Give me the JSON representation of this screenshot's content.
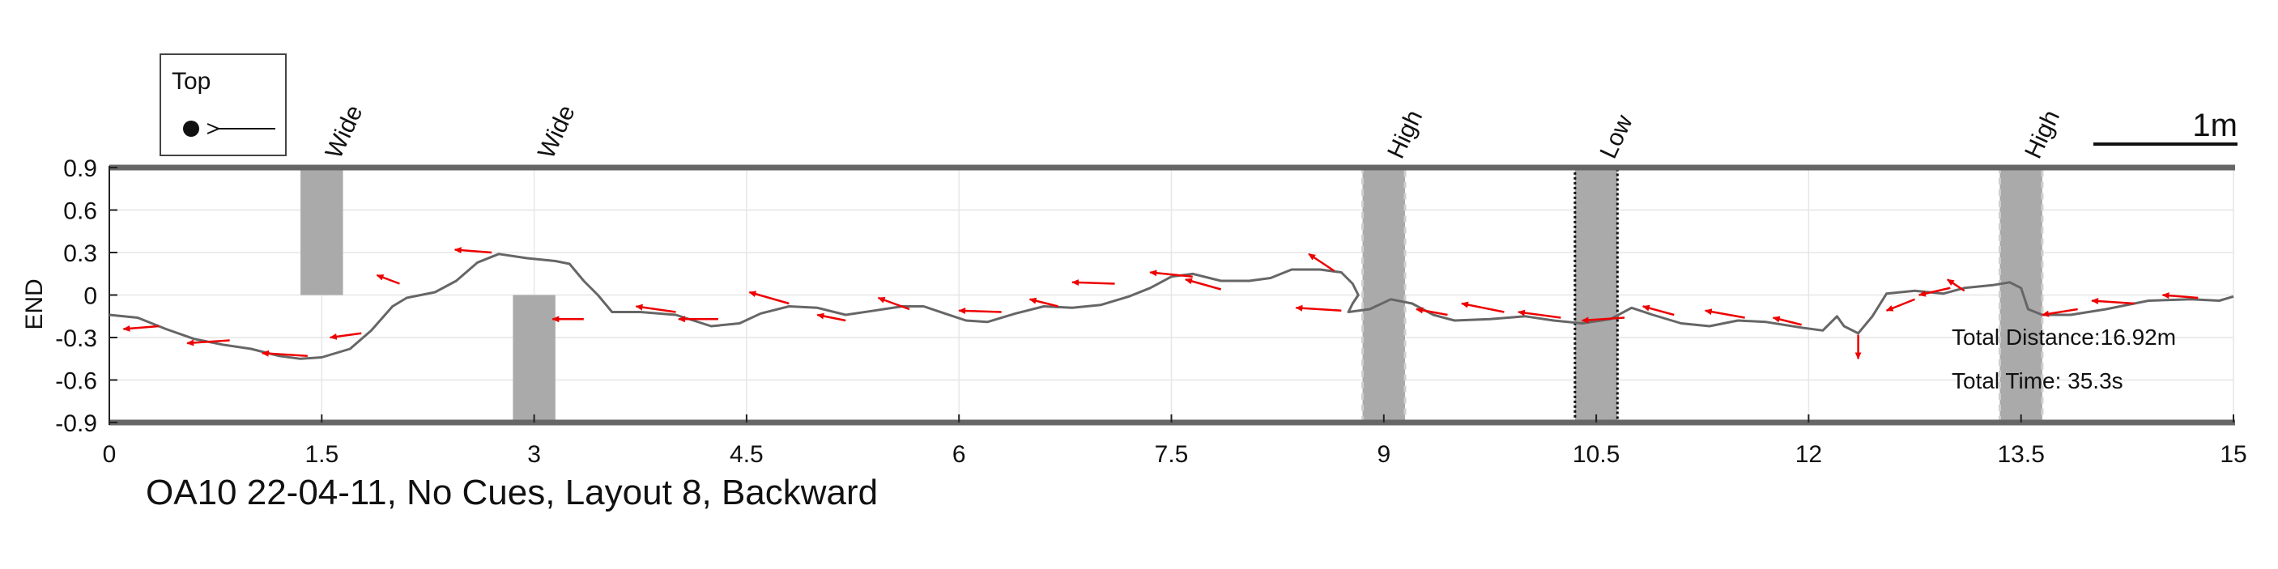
{
  "chart_data": {
    "type": "line",
    "title": "OA10 22-04-11, No Cues, Layout 8, Backward",
    "xlabel": "",
    "ylabel": "END",
    "xlim": [
      0,
      15
    ],
    "ylim": [
      -0.9,
      0.9
    ],
    "xticks": [
      "0",
      "1.5",
      "3",
      "4.5",
      "6",
      "7.5",
      "9",
      "10.5",
      "12",
      "13.5",
      "15"
    ],
    "yticks": [
      "0.9",
      "0.6",
      "0.3",
      "0",
      "-0.3",
      "-0.6",
      "-0.9"
    ],
    "grid": true,
    "legend": {
      "title": "Top",
      "placement": "top-left",
      "marker": "filled circle with arrow pointing left"
    },
    "scale_bar_label": "1m",
    "obstacles": [
      {
        "label": "Wide",
        "x": [
          1.35,
          1.65
        ],
        "y": [
          0,
          0.9
        ],
        "style": "solid"
      },
      {
        "label": "Wide",
        "x": [
          2.85,
          3.15
        ],
        "y": [
          -0.9,
          0
        ],
        "style": "solid"
      },
      {
        "label": "High",
        "x": [
          8.85,
          9.15
        ],
        "y": [
          -0.9,
          0.9
        ],
        "style": "dashed"
      },
      {
        "label": "Low",
        "x": [
          10.35,
          10.65
        ],
        "y": [
          -0.9,
          0.9
        ],
        "style": "dotted"
      },
      {
        "label": "High",
        "x": [
          13.35,
          13.65
        ],
        "y": [
          -0.9,
          0.9
        ],
        "style": "dashed"
      }
    ],
    "series": [
      {
        "color": "#666666",
        "points": [
          [
            0,
            -0.14
          ],
          [
            0.2,
            -0.16
          ],
          [
            0.4,
            -0.24
          ],
          [
            0.6,
            -0.31
          ],
          [
            0.8,
            -0.35
          ],
          [
            1.0,
            -0.38
          ],
          [
            1.2,
            -0.43
          ],
          [
            1.35,
            -0.45
          ],
          [
            1.5,
            -0.44
          ],
          [
            1.7,
            -0.38
          ],
          [
            1.85,
            -0.25
          ],
          [
            2.0,
            -0.08
          ],
          [
            2.1,
            -0.02
          ],
          [
            2.3,
            0.02
          ],
          [
            2.45,
            0.1
          ],
          [
            2.6,
            0.23
          ],
          [
            2.75,
            0.29
          ],
          [
            2.95,
            0.26
          ],
          [
            3.15,
            0.24
          ],
          [
            3.25,
            0.22
          ],
          [
            3.35,
            0.1
          ],
          [
            3.45,
            0.0
          ],
          [
            3.55,
            -0.12
          ],
          [
            3.75,
            -0.12
          ],
          [
            4.0,
            -0.14
          ],
          [
            4.25,
            -0.22
          ],
          [
            4.45,
            -0.2
          ],
          [
            4.6,
            -0.13
          ],
          [
            4.8,
            -0.08
          ],
          [
            5.0,
            -0.09
          ],
          [
            5.2,
            -0.14
          ],
          [
            5.4,
            -0.11
          ],
          [
            5.6,
            -0.08
          ],
          [
            5.75,
            -0.08
          ],
          [
            5.9,
            -0.13
          ],
          [
            6.05,
            -0.18
          ],
          [
            6.2,
            -0.19
          ],
          [
            6.4,
            -0.13
          ],
          [
            6.6,
            -0.08
          ],
          [
            6.8,
            -0.09
          ],
          [
            7.0,
            -0.07
          ],
          [
            7.2,
            -0.01
          ],
          [
            7.35,
            0.05
          ],
          [
            7.5,
            0.13
          ],
          [
            7.65,
            0.15
          ],
          [
            7.85,
            0.1
          ],
          [
            8.05,
            0.1
          ],
          [
            8.2,
            0.12
          ],
          [
            8.35,
            0.18
          ],
          [
            8.55,
            0.18
          ],
          [
            8.7,
            0.16
          ],
          [
            8.78,
            0.08
          ],
          [
            8.82,
            0.0
          ],
          [
            8.78,
            -0.06
          ],
          [
            8.75,
            -0.12
          ],
          [
            8.9,
            -0.1
          ],
          [
            9.05,
            -0.03
          ],
          [
            9.2,
            -0.06
          ],
          [
            9.35,
            -0.14
          ],
          [
            9.5,
            -0.18
          ],
          [
            9.75,
            -0.17
          ],
          [
            10.0,
            -0.15
          ],
          [
            10.2,
            -0.18
          ],
          [
            10.4,
            -0.2
          ],
          [
            10.6,
            -0.17
          ],
          [
            10.75,
            -0.09
          ],
          [
            10.9,
            -0.14
          ],
          [
            11.1,
            -0.2
          ],
          [
            11.3,
            -0.22
          ],
          [
            11.5,
            -0.18
          ],
          [
            11.7,
            -0.19
          ],
          [
            11.95,
            -0.23
          ],
          [
            12.1,
            -0.25
          ],
          [
            12.2,
            -0.15
          ],
          [
            12.25,
            -0.22
          ],
          [
            12.35,
            -0.27
          ],
          [
            12.45,
            -0.15
          ],
          [
            12.55,
            0.01
          ],
          [
            12.75,
            0.03
          ],
          [
            12.95,
            0.01
          ],
          [
            13.1,
            0.05
          ],
          [
            13.3,
            0.07
          ],
          [
            13.42,
            0.09
          ],
          [
            13.5,
            0.05
          ],
          [
            13.55,
            -0.1
          ],
          [
            13.65,
            -0.14
          ],
          [
            13.85,
            -0.14
          ],
          [
            14.1,
            -0.1
          ],
          [
            14.4,
            -0.04
          ],
          [
            14.7,
            -0.03
          ],
          [
            14.9,
            -0.04
          ],
          [
            15.0,
            -0.01
          ]
        ]
      }
    ],
    "arrows": {
      "color": "#ee0000",
      "vectors": [
        [
          0.35,
          -0.22,
          -0.25,
          -0.02
        ],
        [
          0.85,
          -0.32,
          -0.3,
          -0.02
        ],
        [
          1.4,
          -0.43,
          -0.32,
          0.02
        ],
        [
          1.78,
          -0.27,
          -0.22,
          -0.03
        ],
        [
          2.05,
          0.08,
          -0.16,
          0.06
        ],
        [
          2.7,
          0.3,
          -0.26,
          0.02
        ],
        [
          3.35,
          -0.17,
          -0.22,
          0.0
        ],
        [
          4.0,
          -0.12,
          -0.28,
          0.04
        ],
        [
          4.3,
          -0.17,
          -0.28,
          0.0
        ],
        [
          4.8,
          -0.06,
          -0.28,
          0.08
        ],
        [
          5.2,
          -0.18,
          -0.2,
          0.04
        ],
        [
          5.65,
          -0.1,
          -0.22,
          0.08
        ],
        [
          6.3,
          -0.12,
          -0.3,
          0.01
        ],
        [
          6.7,
          -0.08,
          -0.2,
          0.05
        ],
        [
          7.1,
          0.08,
          -0.3,
          0.01
        ],
        [
          7.65,
          0.13,
          -0.3,
          0.03
        ],
        [
          7.85,
          0.04,
          -0.25,
          0.07
        ],
        [
          8.65,
          0.17,
          -0.18,
          0.12
        ],
        [
          8.7,
          -0.11,
          -0.32,
          0.02
        ],
        [
          9.45,
          -0.14,
          -0.22,
          0.04
        ],
        [
          9.85,
          -0.12,
          -0.3,
          0.06
        ],
        [
          10.25,
          -0.16,
          -0.3,
          0.04
        ],
        [
          10.7,
          -0.16,
          -0.3,
          -0.02
        ],
        [
          11.05,
          -0.14,
          -0.22,
          0.06
        ],
        [
          11.55,
          -0.16,
          -0.28,
          0.05
        ],
        [
          11.95,
          -0.21,
          -0.2,
          0.05
        ],
        [
          12.35,
          -0.28,
          0.0,
          -0.17
        ],
        [
          12.75,
          -0.03,
          -0.2,
          -0.08
        ],
        [
          13.0,
          0.05,
          -0.22,
          -0.05
        ],
        [
          13.1,
          0.03,
          -0.12,
          0.08
        ],
        [
          13.9,
          -0.1,
          -0.25,
          -0.04
        ],
        [
          14.3,
          -0.06,
          -0.3,
          0.02
        ],
        [
          14.75,
          -0.02,
          -0.25,
          0.02
        ]
      ]
    },
    "annotations": {
      "total_distance": "Total Distance:16.92m",
      "total_time": "Total Time: 35.3s"
    }
  }
}
